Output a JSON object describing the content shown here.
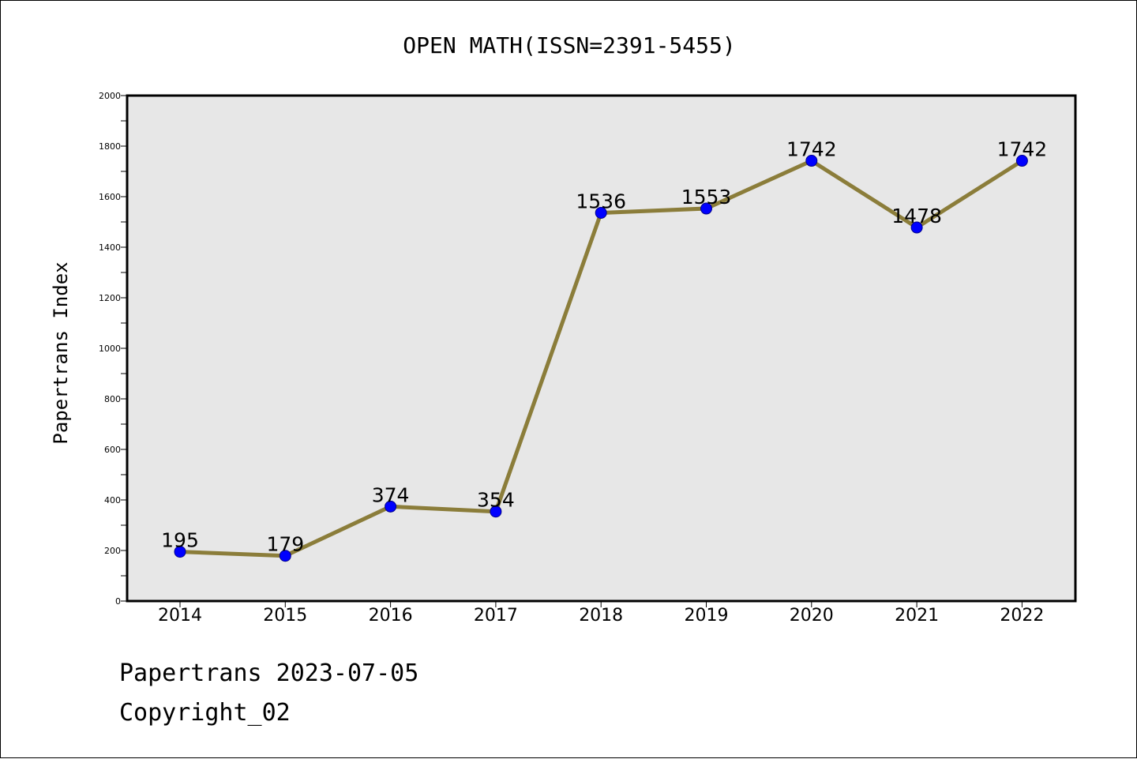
{
  "chart_data": {
    "type": "line",
    "title": "OPEN MATH(ISSN=2391-5455)",
    "xlabel": "",
    "ylabel": "Papertrans Index",
    "categories": [
      "2014",
      "2015",
      "2016",
      "2017",
      "2018",
      "2019",
      "2020",
      "2021",
      "2022"
    ],
    "values": [
      195,
      179,
      374,
      354,
      1536,
      1553,
      1742,
      1478,
      1742
    ],
    "data_labels": [
      "195",
      "179",
      "374",
      "354",
      "1536",
      "1553",
      "1742",
      "1478",
      "1742"
    ],
    "ylim": [
      0,
      2000
    ],
    "yticks": [
      "0",
      "200",
      "400",
      "600",
      "800",
      "1000",
      "1200",
      "1400",
      "1600",
      "1800",
      "2000"
    ],
    "grid": false,
    "line_color": "#8B7D3A",
    "marker_color": "#0000FF",
    "plot_background": "#E7E7E7"
  },
  "footer": {
    "date_line": "Papertrans 2023-07-05",
    "copyright_line": "Copyright_02"
  }
}
